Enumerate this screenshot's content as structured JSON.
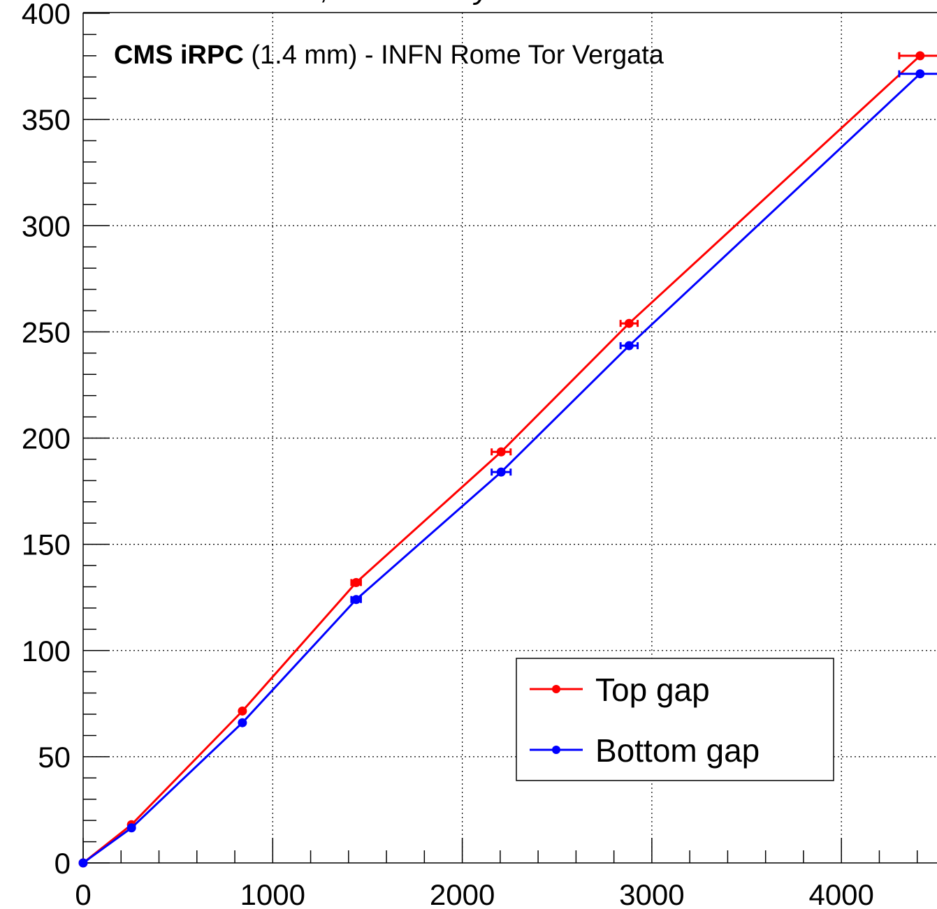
{
  "chart_data": {
    "type": "line",
    "header": {
      "experiment": "CMS Simulation",
      "status": "Preliminary"
    },
    "annotation": {
      "bold": "CMS iRPC",
      "rest": " (1.4 mm) - INFN Rome Tor Vergata"
    },
    "xlim": [
      0,
      4500
    ],
    "ylim": [
      0,
      400
    ],
    "x_ticks": [
      0,
      1000,
      2000,
      3000,
      4000
    ],
    "x_tick_labels": [
      "0",
      "1000",
      "2000",
      "3000",
      "4000"
    ],
    "y_ticks": [
      0,
      50,
      100,
      150,
      200,
      250,
      300,
      350,
      400
    ],
    "y_tick_labels": [
      "0",
      "50",
      "100",
      "150",
      "200",
      "250",
      "300",
      "350",
      "400"
    ],
    "grid": true,
    "legend_position": "bottom-right",
    "series": [
      {
        "name": "Top gap",
        "color": "#ff0000",
        "x": [
          0,
          255,
          840,
          1440,
          2205,
          2880,
          4415
        ],
        "y": [
          0,
          18,
          71.5,
          132,
          193.5,
          254,
          380
        ],
        "x_err": [
          0,
          0,
          0,
          25,
          50,
          45,
          110
        ]
      },
      {
        "name": "Bottom gap",
        "color": "#0000ff",
        "x": [
          0,
          255,
          840,
          1440,
          2205,
          2880,
          4415
        ],
        "y": [
          0,
          16.5,
          66,
          124,
          184,
          243.5,
          371.5
        ],
        "x_err": [
          0,
          0,
          0,
          25,
          50,
          45,
          110
        ]
      }
    ]
  }
}
